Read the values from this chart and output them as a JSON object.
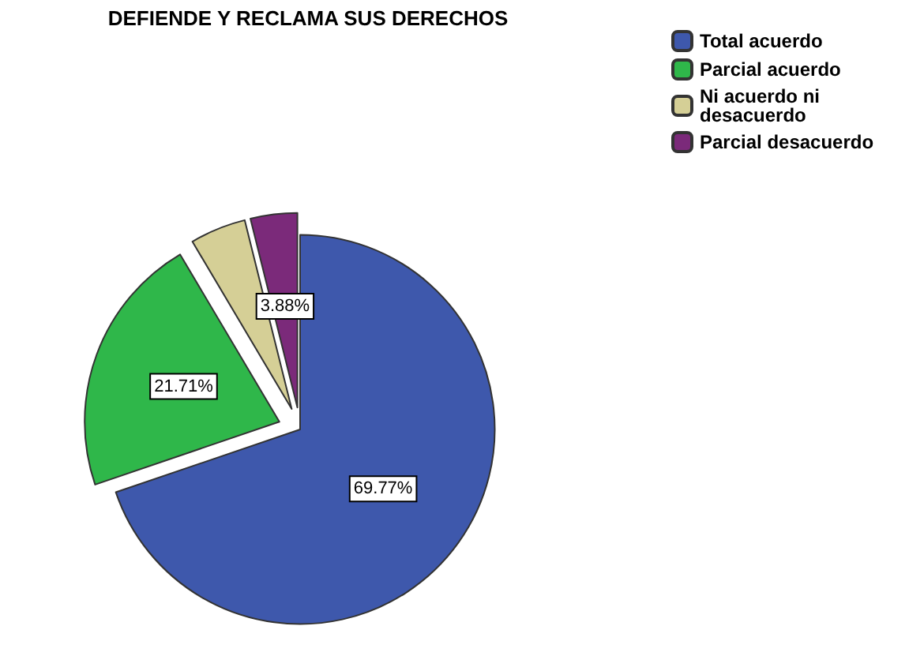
{
  "chart_data": {
    "type": "pie",
    "title": "DEFIENDE Y RECLAMA SUS DERECHOS",
    "categories": [
      "Total acuerdo",
      "Parcial acuerdo",
      "Ni acuerdo ni desacuerdo",
      "Parcial desacuerdo"
    ],
    "values": [
      69.77,
      21.71,
      4.64,
      3.88
    ],
    "value_labels": [
      "69.77%",
      "21.71%",
      null,
      "3.88%"
    ],
    "colors": [
      "#3e58ac",
      "#2fb74a",
      "#d5cf96",
      "#7b2a7a"
    ],
    "legend": "top right"
  }
}
